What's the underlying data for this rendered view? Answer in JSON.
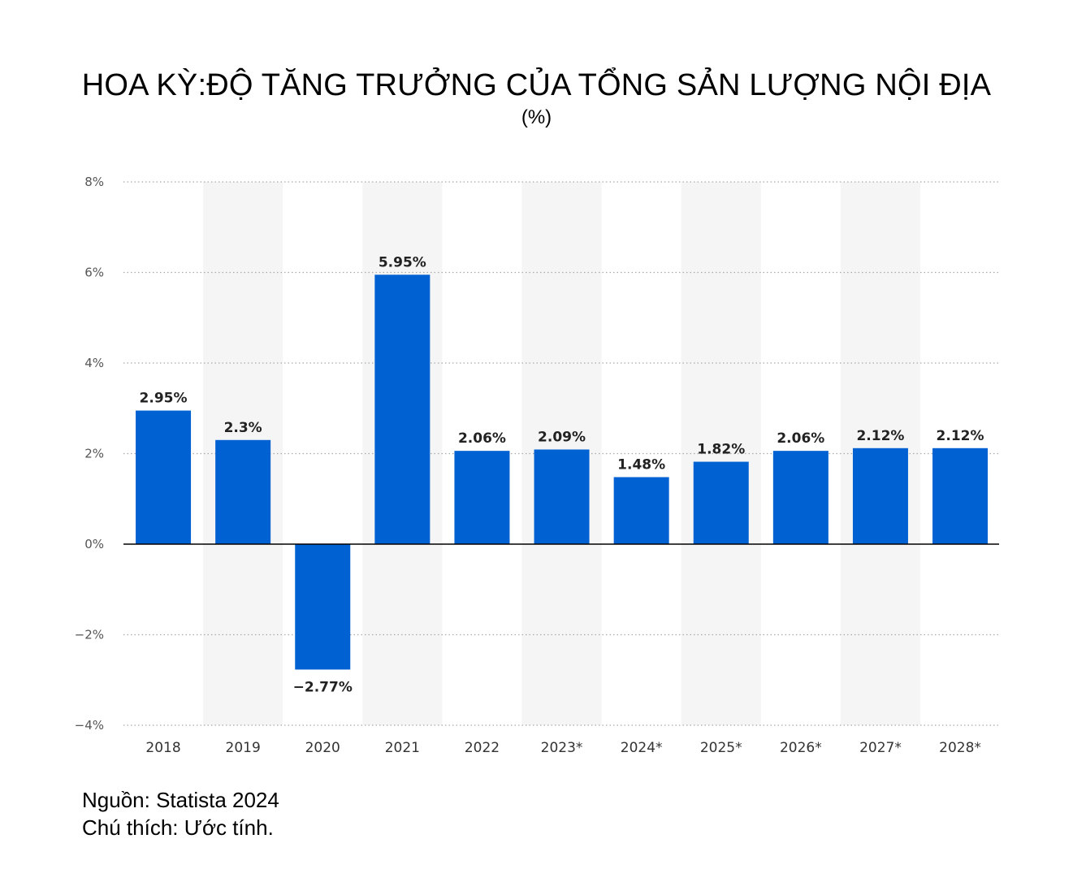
{
  "title": "HOA KỲ:ĐỘ TĂNG TRƯỞNG CỦA TỔNG SẢN LƯỢNG NỘI ĐỊA",
  "subtitle": "(%)",
  "footer": {
    "source": "Nguồn: Statista 2024",
    "note": "Chú thích: Ước tính."
  },
  "colors": {
    "bar": "#0061d2",
    "band": "#f5f5f5",
    "grid": "#a9a9a9",
    "axis_text": "#333333"
  },
  "chart_data": {
    "type": "bar",
    "categories": [
      "2018",
      "2019",
      "2020",
      "2021",
      "2022",
      "2023*",
      "2024*",
      "2025*",
      "2026*",
      "2027*",
      "2028*"
    ],
    "values": [
      2.95,
      2.3,
      -2.77,
      5.95,
      2.06,
      2.09,
      1.48,
      1.82,
      2.06,
      2.12,
      2.12
    ],
    "value_labels": [
      "2.95%",
      "2.3%",
      "−2.77%",
      "5.95%",
      "2.06%",
      "2.09%",
      "1.48%",
      "1.82%",
      "2.06%",
      "2.12%",
      "2.12%"
    ],
    "yticks": [
      8,
      6,
      4,
      2,
      0,
      -2,
      -4
    ],
    "ytick_labels": [
      "8%",
      "6%",
      "4%",
      "2%",
      "0%",
      "−2%",
      "−4%"
    ],
    "ylim": [
      -4,
      8
    ],
    "grid": true,
    "legend": "none"
  }
}
